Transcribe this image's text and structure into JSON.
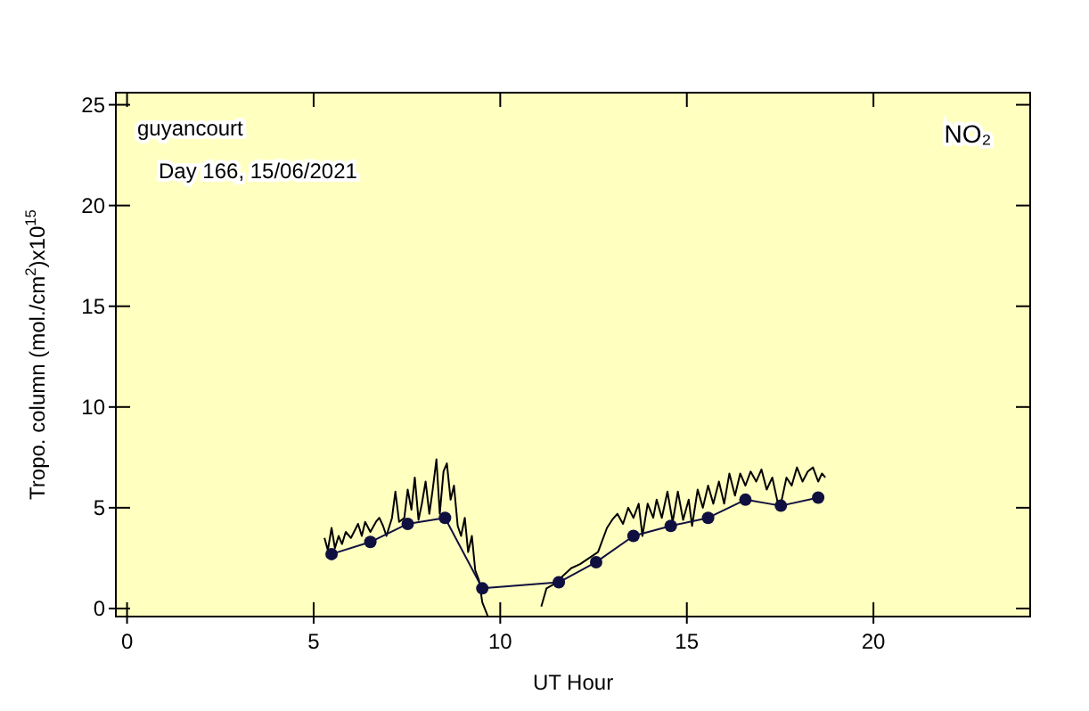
{
  "chart_data": {
    "type": "line",
    "xlabel": "UT Hour",
    "ylabel": "Tropo. column (mol./cm$^{2}$)x10$^{15}$",
    "annotations": [
      "guyancourt",
      "Day 166, 15/06/2021",
      "NO₂"
    ],
    "xlim": [
      -0.3,
      24.2
    ],
    "ylim": [
      -0.4,
      25.6
    ],
    "xticks": [
      0,
      5,
      10,
      15,
      20
    ],
    "yticks": [
      0,
      5,
      10,
      15,
      20,
      25
    ],
    "grid": false,
    "series": [
      {
        "color": "#000000",
        "marker": "none",
        "x": [
          5.29,
          5.38,
          5.48,
          5.57,
          5.67,
          5.76,
          5.86,
          6.0,
          6.19,
          6.29,
          6.38,
          6.52,
          6.67,
          6.76,
          6.86,
          6.95,
          7.1,
          7.19,
          7.29,
          7.43,
          7.52,
          7.62,
          7.71,
          7.81,
          7.9,
          8.0,
          8.1,
          8.19,
          8.29,
          8.38,
          8.48,
          8.57,
          8.67,
          8.76,
          8.86,
          8.95,
          9.05,
          9.14,
          9.24,
          9.33,
          9.43,
          9.52,
          9.67,
          10.4,
          11.1,
          11.24,
          11.43,
          11.67,
          11.9,
          12.14,
          12.38,
          12.62,
          12.86,
          13.0,
          13.14,
          13.29,
          13.43,
          13.57,
          13.71,
          13.81,
          13.95,
          14.1,
          14.19,
          14.33,
          14.48,
          14.62,
          14.76,
          14.9,
          15.05,
          15.14,
          15.29,
          15.43,
          15.57,
          15.71,
          15.86,
          16.0,
          16.14,
          16.29,
          16.43,
          16.57,
          16.71,
          16.86,
          17.0,
          17.14,
          17.29,
          17.43,
          17.52,
          17.67,
          17.81,
          17.95,
          18.1,
          18.24,
          18.38,
          18.52,
          18.62,
          18.71
        ],
        "values": [
          3.5,
          2.9,
          4.0,
          3.0,
          3.6,
          3.2,
          3.8,
          3.5,
          4.2,
          3.6,
          4.3,
          3.8,
          4.3,
          4.5,
          4.1,
          3.6,
          4.5,
          5.8,
          4.3,
          4.5,
          5.9,
          4.9,
          6.5,
          4.4,
          5.2,
          6.3,
          4.7,
          5.9,
          7.4,
          4.7,
          6.8,
          7.2,
          5.4,
          6.1,
          4.1,
          3.6,
          4.5,
          2.8,
          3.6,
          1.9,
          1.4,
          0.3,
          -0.4,
          null,
          0.1,
          1.0,
          1.2,
          1.6,
          2.0,
          2.2,
          2.5,
          2.8,
          4.0,
          4.4,
          4.7,
          4.2,
          5.0,
          4.5,
          5.2,
          3.6,
          5.2,
          4.5,
          5.4,
          4.5,
          5.8,
          4.3,
          5.8,
          4.4,
          5.4,
          4.1,
          5.9,
          5.0,
          6.1,
          5.2,
          6.3,
          5.2,
          6.7,
          5.6,
          6.7,
          6.1,
          6.8,
          6.3,
          6.9,
          5.9,
          6.5,
          5.3,
          5.2,
          6.5,
          6.1,
          7.0,
          6.3,
          6.8,
          7.0,
          6.3,
          6.7,
          6.5
        ]
      },
      {
        "color": "#101040",
        "marker": "circle",
        "x": [
          5.48,
          6.52,
          7.52,
          8.52,
          9.52,
          11.57,
          12.57,
          13.57,
          14.57,
          15.57,
          16.57,
          17.52,
          18.52
        ],
        "values": [
          2.7,
          3.3,
          4.2,
          4.5,
          1.0,
          1.3,
          2.3,
          3.6,
          4.1,
          4.5,
          5.4,
          5.1,
          5.5
        ]
      }
    ]
  }
}
